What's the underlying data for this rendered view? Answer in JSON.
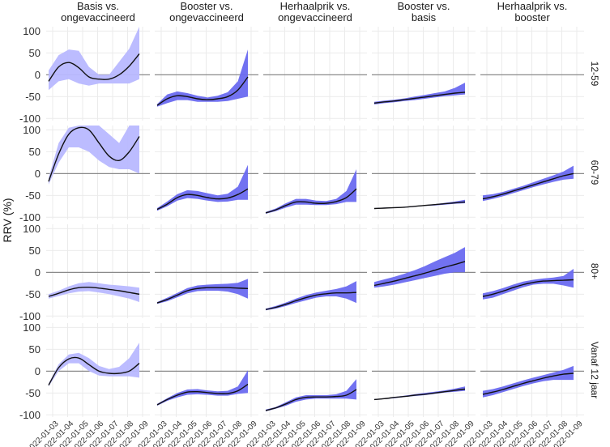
{
  "chart_data": {
    "type": "area",
    "ylabel": "RRV (%)",
    "xlabel": "",
    "ylim": [
      -105,
      110
    ],
    "y_ticks": [
      -100,
      -50,
      0,
      50,
      100
    ],
    "x_ticks": [
      "2022-01-03",
      "2022-01-04",
      "2022-01-05",
      "2022-01-06",
      "2022-01-07",
      "2022-01-08",
      "2022-01-09"
    ],
    "x_tick_labels": [
      "2022-01-03",
      "2022-01-04",
      "2022-01-05",
      "2022-01-06",
      "2022-01-07",
      "2022-01-08",
      "2022-01-09"
    ],
    "columns": [
      "Basis vs.\nongevaccineerd",
      "Booster vs.\nongevaccineerd",
      "Herhaalprik vs.\nongevaccineerd",
      "Booster vs.\nbasis",
      "Herhaalprik vs.\nbooster"
    ],
    "rows": [
      "12-59",
      "60-79",
      "80+",
      "Vanaf 12 jaar"
    ],
    "colors": {
      "light_band": "#b8b8ff",
      "dark_band": "#6a6af0",
      "line": "#111111",
      "zero_line": "#8a8a8a",
      "grid": "#ebebeb"
    },
    "panels": [
      {
        "row": 0,
        "col": 0,
        "x": [
          0,
          1,
          2,
          3,
          4,
          5,
          6,
          7,
          8,
          9
        ],
        "y": [
          -15,
          18,
          28,
          16,
          -5,
          -10,
          -10,
          0,
          20,
          48
        ],
        "lower": [
          -35,
          -15,
          -10,
          -20,
          -25,
          -20,
          -20,
          -20,
          -20,
          -10
        ],
        "upper": [
          10,
          45,
          58,
          55,
          18,
          0,
          0,
          30,
          60,
          110
        ]
      },
      {
        "row": 0,
        "col": 1,
        "x": [
          0,
          1,
          2,
          3,
          4,
          5,
          6,
          7,
          8,
          9
        ],
        "y": [
          -70,
          -55,
          -48,
          -50,
          -55,
          -57,
          -55,
          -50,
          -35,
          -5
        ],
        "lower": [
          -73,
          -65,
          -58,
          -58,
          -62,
          -62,
          -62,
          -60,
          -55,
          -50
        ],
        "upper": [
          -67,
          -45,
          -38,
          -42,
          -48,
          -52,
          -48,
          -40,
          -15,
          58
        ]
      },
      {
        "row": 0,
        "col": 3,
        "x": [
          0,
          1,
          2,
          3,
          4,
          5,
          6,
          7,
          8,
          9
        ],
        "y": [
          -65,
          -62,
          -60,
          -57,
          -54,
          -51,
          -48,
          -45,
          -42,
          -40
        ],
        "lower": [
          -68,
          -65,
          -63,
          -60,
          -58,
          -55,
          -52,
          -49,
          -47,
          -45
        ],
        "upper": [
          -62,
          -59,
          -57,
          -54,
          -50,
          -46,
          -42,
          -38,
          -30,
          -18
        ]
      },
      {
        "row": 1,
        "col": 0,
        "x": [
          0,
          1,
          2,
          3,
          4,
          5,
          6,
          7,
          8,
          9
        ],
        "y": [
          -18,
          45,
          90,
          105,
          100,
          70,
          40,
          30,
          50,
          85
        ],
        "lower": [
          -25,
          25,
          60,
          60,
          50,
          30,
          15,
          10,
          10,
          0
        ],
        "upper": [
          -10,
          70,
          105,
          110,
          110,
          110,
          90,
          70,
          110,
          110
        ]
      },
      {
        "row": 1,
        "col": 1,
        "x": [
          0,
          1,
          2,
          3,
          4,
          5,
          6,
          7,
          8,
          9
        ],
        "y": [
          -82,
          -70,
          -55,
          -48,
          -50,
          -55,
          -58,
          -56,
          -48,
          -35
        ],
        "lower": [
          -85,
          -75,
          -62,
          -56,
          -58,
          -62,
          -65,
          -64,
          -60,
          -60
        ],
        "upper": [
          -79,
          -64,
          -47,
          -38,
          -40,
          -45,
          -50,
          -46,
          -30,
          20
        ]
      },
      {
        "row": 1,
        "col": 2,
        "x": [
          0,
          1,
          2,
          3,
          4,
          5,
          6,
          7,
          8,
          9
        ],
        "y": [
          -90,
          -83,
          -73,
          -65,
          -65,
          -68,
          -68,
          -64,
          -55,
          -35
        ],
        "lower": [
          -92,
          -86,
          -78,
          -71,
          -71,
          -72,
          -72,
          -70,
          -65,
          -65
        ],
        "upper": [
          -88,
          -80,
          -68,
          -58,
          -58,
          -62,
          -63,
          -58,
          -40,
          10
        ]
      },
      {
        "row": 1,
        "col": 3,
        "x": [
          0,
          1,
          2,
          3,
          4,
          5,
          6,
          7,
          8,
          9
        ],
        "y": [
          -80,
          -79,
          -78,
          -77,
          -75,
          -73,
          -71,
          -69,
          -67,
          -65
        ],
        "lower": [
          -81,
          -80,
          -79,
          -78,
          -76,
          -74,
          -73,
          -71,
          -69,
          -68
        ],
        "upper": [
          -79,
          -78,
          -77,
          -76,
          -74,
          -72,
          -70,
          -67,
          -64,
          -60
        ]
      },
      {
        "row": 1,
        "col": 4,
        "x": [
          0,
          1,
          2,
          3,
          4,
          5,
          6,
          7,
          8,
          9
        ],
        "y": [
          -58,
          -53,
          -47,
          -40,
          -33,
          -26,
          -19,
          -12,
          -5,
          0
        ],
        "lower": [
          -63,
          -58,
          -52,
          -45,
          -38,
          -31,
          -25,
          -19,
          -14,
          -12
        ],
        "upper": [
          -50,
          -47,
          -42,
          -35,
          -28,
          -20,
          -12,
          -4,
          5,
          18
        ]
      },
      {
        "row": 2,
        "col": 0,
        "x": [
          0,
          1,
          2,
          3,
          4,
          5,
          6,
          7,
          8,
          9
        ],
        "y": [
          -55,
          -48,
          -40,
          -35,
          -34,
          -36,
          -39,
          -42,
          -46,
          -50
        ],
        "lower": [
          -60,
          -54,
          -48,
          -44,
          -43,
          -46,
          -50,
          -55,
          -60,
          -68
        ],
        "upper": [
          -50,
          -42,
          -32,
          -25,
          -22,
          -25,
          -28,
          -30,
          -32,
          -35
        ]
      },
      {
        "row": 2,
        "col": 1,
        "x": [
          0,
          1,
          2,
          3,
          4,
          5,
          6,
          7,
          8,
          9
        ],
        "y": [
          -70,
          -62,
          -52,
          -42,
          -37,
          -35,
          -35,
          -35,
          -36,
          -37
        ],
        "lower": [
          -72,
          -66,
          -57,
          -48,
          -43,
          -42,
          -42,
          -44,
          -50,
          -60
        ],
        "upper": [
          -68,
          -58,
          -47,
          -36,
          -30,
          -28,
          -27,
          -26,
          -24,
          -15
        ]
      },
      {
        "row": 2,
        "col": 2,
        "x": [
          0,
          1,
          2,
          3,
          4,
          5,
          6,
          7,
          8,
          9
        ],
        "y": [
          -85,
          -80,
          -73,
          -65,
          -58,
          -52,
          -49,
          -47,
          -47,
          -46
        ],
        "lower": [
          -87,
          -83,
          -77,
          -70,
          -64,
          -58,
          -55,
          -55,
          -60,
          -70
        ],
        "upper": [
          -83,
          -77,
          -69,
          -60,
          -52,
          -46,
          -42,
          -38,
          -32,
          -20
        ]
      },
      {
        "row": 2,
        "col": 3,
        "x": [
          0,
          1,
          2,
          3,
          4,
          5,
          6,
          7,
          8,
          9
        ],
        "y": [
          -30,
          -25,
          -20,
          -14,
          -8,
          -2,
          5,
          12,
          18,
          25
        ],
        "lower": [
          -35,
          -32,
          -28,
          -23,
          -18,
          -13,
          -8,
          -3,
          0,
          0
        ],
        "upper": [
          -22,
          -16,
          -10,
          -3,
          5,
          14,
          25,
          35,
          45,
          58
        ]
      },
      {
        "row": 2,
        "col": 4,
        "x": [
          0,
          1,
          2,
          3,
          4,
          5,
          6,
          7,
          8,
          9
        ],
        "y": [
          -55,
          -50,
          -43,
          -35,
          -28,
          -23,
          -20,
          -19,
          -18,
          -17
        ],
        "lower": [
          -62,
          -58,
          -50,
          -42,
          -34,
          -28,
          -26,
          -26,
          -30,
          -35
        ],
        "upper": [
          -48,
          -43,
          -36,
          -28,
          -21,
          -17,
          -14,
          -12,
          -8,
          8
        ]
      },
      {
        "row": 3,
        "col": 0,
        "x": [
          0,
          1,
          2,
          3,
          4,
          5,
          6,
          7,
          8,
          9
        ],
        "y": [
          -32,
          8,
          28,
          30,
          15,
          0,
          -5,
          -5,
          0,
          18
        ],
        "lower": [
          -35,
          0,
          18,
          18,
          0,
          -10,
          -12,
          -12,
          -12,
          -15
        ],
        "upper": [
          -28,
          16,
          38,
          42,
          30,
          12,
          5,
          10,
          30,
          65
        ]
      },
      {
        "row": 3,
        "col": 1,
        "x": [
          0,
          1,
          2,
          3,
          4,
          5,
          6,
          7,
          8,
          9
        ],
        "y": [
          -77,
          -65,
          -55,
          -48,
          -47,
          -49,
          -51,
          -51,
          -45,
          -30
        ],
        "lower": [
          -79,
          -68,
          -60,
          -54,
          -53,
          -54,
          -56,
          -56,
          -52,
          -50
        ],
        "upper": [
          -75,
          -62,
          -50,
          -42,
          -41,
          -44,
          -46,
          -45,
          -35,
          2
        ]
      },
      {
        "row": 3,
        "col": 2,
        "x": [
          0,
          1,
          2,
          3,
          4,
          5,
          6,
          7,
          8,
          9
        ],
        "y": [
          -90,
          -84,
          -75,
          -65,
          -60,
          -59,
          -59,
          -58,
          -55,
          -42
        ],
        "lower": [
          -92,
          -86,
          -79,
          -70,
          -65,
          -63,
          -63,
          -63,
          -63,
          -65
        ],
        "upper": [
          -88,
          -82,
          -71,
          -60,
          -55,
          -55,
          -55,
          -53,
          -45,
          -18
        ]
      },
      {
        "row": 3,
        "col": 3,
        "x": [
          0,
          1,
          2,
          3,
          4,
          5,
          6,
          7,
          8,
          9
        ],
        "y": [
          -65,
          -63,
          -60,
          -58,
          -55,
          -53,
          -50,
          -47,
          -44,
          -41
        ],
        "lower": [
          -66,
          -64,
          -62,
          -59,
          -57,
          -55,
          -52,
          -49,
          -47,
          -45
        ],
        "upper": [
          -64,
          -62,
          -59,
          -56,
          -53,
          -50,
          -47,
          -44,
          -40,
          -35
        ]
      },
      {
        "row": 3,
        "col": 4,
        "x": [
          0,
          1,
          2,
          3,
          4,
          5,
          6,
          7,
          8,
          9
        ],
        "y": [
          -53,
          -48,
          -42,
          -35,
          -28,
          -22,
          -16,
          -11,
          -7,
          -5
        ],
        "lower": [
          -60,
          -55,
          -48,
          -41,
          -34,
          -28,
          -23,
          -20,
          -20,
          -20
        ],
        "upper": [
          -45,
          -41,
          -35,
          -28,
          -21,
          -15,
          -9,
          -3,
          3,
          12
        ]
      }
    ]
  }
}
